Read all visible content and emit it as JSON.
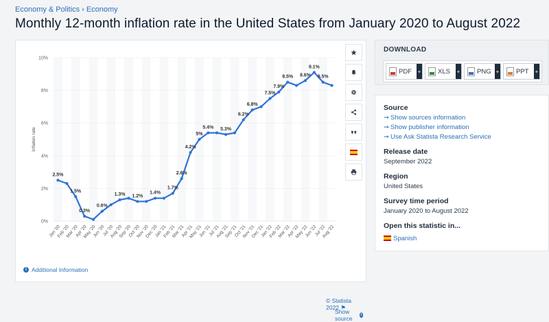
{
  "breadcrumb": {
    "items": [
      "Economy & Politics",
      "Economy"
    ],
    "separator": "›"
  },
  "page_title": "Monthly 12-month inflation rate in the United States from January 2020 to August 2022",
  "toolbar": {
    "icons": [
      "star-icon",
      "bell-icon",
      "gear-icon",
      "share-icon",
      "quote-icon",
      "flag-icon",
      "print-icon"
    ]
  },
  "download": {
    "title": "DOWNLOAD",
    "buttons": [
      {
        "label": "PDF",
        "icon": "pdf-file-icon"
      },
      {
        "label": "XLS",
        "icon": "xls-file-icon"
      },
      {
        "label": "PNG",
        "icon": "png-file-icon"
      },
      {
        "label": "PPT",
        "icon": "ppt-file-icon"
      }
    ],
    "plus": "+"
  },
  "info": {
    "source_label": "Source",
    "source_links": [
      "Show sources information",
      "Show publisher information",
      "Use Ask Statista Research Service"
    ],
    "release_label": "Release date",
    "release_value": "September 2022",
    "region_label": "Region",
    "region_value": "United States",
    "period_label": "Survey time period",
    "period_value": "January 2020 to August 2022",
    "open_label": "Open this statistic in...",
    "open_language": "Spanish"
  },
  "footer": {
    "additional_info": "Additional Information",
    "credit": "© Statista 2022",
    "show_source": "Show source"
  },
  "colors": {
    "line": "#2f73d6",
    "link": "#2c6fb7"
  },
  "chart_data": {
    "type": "line",
    "title": "Monthly 12-month inflation rate in the United States from January 2020 to August 2022",
    "xlabel": "",
    "ylabel": "Inflation rate",
    "ylim": [
      0,
      10
    ],
    "yticks": [
      "0%",
      "2%",
      "4%",
      "6%",
      "8%",
      "10%"
    ],
    "grid": true,
    "categories": [
      "Jan '20",
      "Feb '20",
      "Mar '20",
      "Apr '20",
      "May '20",
      "Jun '20",
      "Jul '20",
      "Aug '20",
      "Sep '20",
      "Oct '20",
      "Nov '20",
      "Dec '20",
      "Jan '21",
      "Feb '21",
      "Mar '21",
      "Apr '21",
      "May '21",
      "Jun '21",
      "Jul '21",
      "Aug '21",
      "Sep '21",
      "Oct '21",
      "Nov '21",
      "Dec '21",
      "Jan '22",
      "Feb '22",
      "Mar '22",
      "Apr '22",
      "May '22",
      "Jun '22",
      "Jul '22",
      "Aug '22"
    ],
    "xtick_labels": [
      "Jan '20",
      "Mar '20",
      "May '20",
      "Jul '20",
      "Sep '20",
      "Nov '20",
      "Jan '21",
      "Mar '21",
      "May '21",
      "Jul '21",
      "Sep '21",
      "Nov '21",
      "Jan '22",
      "Mar '22",
      "May '22",
      "Jul '22",
      "Feb '20",
      "Apr '20",
      "Jun '20",
      "Aug '20",
      "Oct '20",
      "Dec '20",
      "Feb '21",
      "Apr '21",
      "Jun '21",
      "Aug '21",
      "Oct '21",
      "Dec '21",
      "Feb '22",
      "Apr '22",
      "Jun '22",
      "Aug '22"
    ],
    "values": [
      2.5,
      2.3,
      1.5,
      0.3,
      0.1,
      0.6,
      1.0,
      1.3,
      1.4,
      1.2,
      1.2,
      1.4,
      1.4,
      1.7,
      2.6,
      4.2,
      5.0,
      5.4,
      5.4,
      5.3,
      5.4,
      6.2,
      6.8,
      7.0,
      7.5,
      7.9,
      8.5,
      8.3,
      8.6,
      9.1,
      8.5,
      8.3
    ],
    "data_labels": [
      {
        "index": 0,
        "text": "2.5%"
      },
      {
        "index": 2,
        "text": "1.5%"
      },
      {
        "index": 3,
        "text": "0.3%"
      },
      {
        "index": 5,
        "text": "0.6%"
      },
      {
        "index": 7,
        "text": "1.3%"
      },
      {
        "index": 9,
        "text": "1.2%"
      },
      {
        "index": 11,
        "text": "1.4%"
      },
      {
        "index": 13,
        "text": "1.7%"
      },
      {
        "index": 14,
        "text": "2.6%"
      },
      {
        "index": 15,
        "text": "4.2%"
      },
      {
        "index": 16,
        "text": "5%"
      },
      {
        "index": 17,
        "text": "5.4%"
      },
      {
        "index": 19,
        "text": "5.3%"
      },
      {
        "index": 21,
        "text": "6.2%"
      },
      {
        "index": 22,
        "text": "6.8%"
      },
      {
        "index": 24,
        "text": "7.5%"
      },
      {
        "index": 25,
        "text": "7.9%"
      },
      {
        "index": 26,
        "text": "8.5%"
      },
      {
        "index": 28,
        "text": "8.6%"
      },
      {
        "index": 29,
        "text": "9.1%"
      },
      {
        "index": 30,
        "text": "8.5%"
      }
    ]
  }
}
